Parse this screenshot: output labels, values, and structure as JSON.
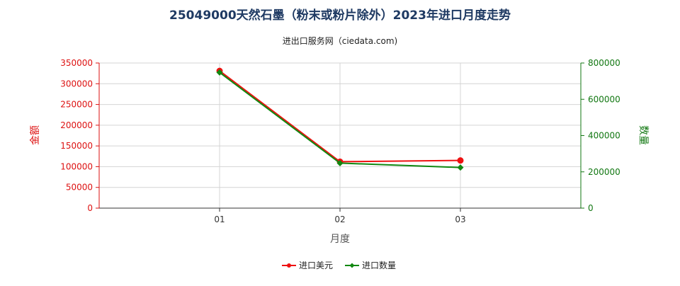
{
  "chart_data": {
    "type": "line",
    "title": "25049000天然石墨（粉末或粉片除外）2023年进口月度走势",
    "subtitle": "进出口服务网（ciedata.com)",
    "xlabel": "月度",
    "categories": [
      "01",
      "02",
      "03"
    ],
    "y_left": {
      "label": "金额",
      "ticks": [
        "0",
        "50000",
        "100000",
        "150000",
        "200000",
        "250000",
        "300000",
        "350000"
      ],
      "range": [
        0,
        350000
      ],
      "color": "#dd1111"
    },
    "y_right": {
      "label": "数量",
      "ticks": [
        "0",
        "200000",
        "400000",
        "600000",
        "800000"
      ],
      "range": [
        0,
        800000
      ],
      "color": "#117711"
    },
    "series": [
      {
        "name": "进口美元",
        "axis": "left",
        "color": "#ee1111",
        "values": [
          331000,
          112000,
          115000
        ]
      },
      {
        "name": "进口数量",
        "axis": "right",
        "color": "#118811",
        "values": [
          748000,
          248000,
          224000
        ]
      }
    ],
    "grid": true,
    "legend_position": "bottom"
  }
}
